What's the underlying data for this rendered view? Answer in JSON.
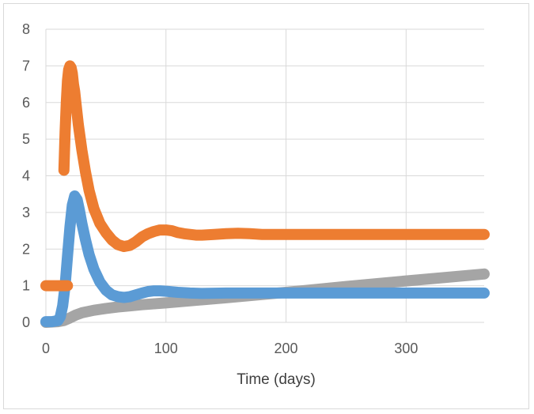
{
  "chart_data": {
    "type": "line",
    "title": "",
    "xlabel": "Time (days)",
    "ylabel": "",
    "xlim": [
      0,
      365
    ],
    "ylim": [
      0,
      8
    ],
    "x_ticks": [
      0,
      100,
      200,
      300
    ],
    "y_ticks": [
      0,
      1,
      2,
      3,
      4,
      5,
      6,
      7,
      8
    ],
    "grid": true,
    "legend": "none",
    "series": [
      {
        "color": "#ed7d31",
        "segments": [
          {
            "x": [
              0,
              18
            ],
            "y": [
              1,
              1
            ]
          },
          {
            "x": [
              15,
              16,
              17,
              18,
              19,
              20,
              21,
              22,
              23,
              24,
              25,
              27,
              30,
              33,
              36,
              40,
              45,
              50,
              55,
              60,
              65,
              70,
              75,
              80,
              85,
              90,
              95,
              100,
              105,
              110,
              115,
              120,
              125,
              130,
              140,
              150,
              160,
              170,
              180,
              200,
              250,
              300,
              365
            ],
            "y": [
              4.15,
              5.2,
              6.0,
              6.6,
              6.9,
              7.0,
              6.95,
              6.8,
              6.5,
              6.3,
              6.0,
              5.4,
              4.7,
              4.1,
              3.6,
              3.1,
              2.7,
              2.45,
              2.25,
              2.12,
              2.07,
              2.1,
              2.2,
              2.33,
              2.42,
              2.48,
              2.52,
              2.52,
              2.5,
              2.45,
              2.42,
              2.4,
              2.38,
              2.38,
              2.4,
              2.42,
              2.43,
              2.42,
              2.4,
              2.4,
              2.4,
              2.4,
              2.4
            ]
          }
        ]
      },
      {
        "color": "#5b9bd5",
        "segments": [
          {
            "x": [
              0,
              5,
              10,
              12,
              14,
              16,
              18,
              20,
              22,
              24,
              26,
              28,
              30,
              33,
              36,
              40,
              45,
              50,
              55,
              60,
              65,
              70,
              75,
              80,
              85,
              90,
              95,
              100,
              110,
              120,
              130,
              150,
              200,
              250,
              300,
              365
            ],
            "y": [
              0.02,
              0.02,
              0.05,
              0.15,
              0.45,
              1.0,
              1.8,
              2.6,
              3.2,
              3.45,
              3.35,
              3.05,
              2.7,
              2.25,
              1.85,
              1.45,
              1.1,
              0.88,
              0.75,
              0.7,
              0.68,
              0.7,
              0.75,
              0.8,
              0.84,
              0.86,
              0.86,
              0.85,
              0.82,
              0.8,
              0.79,
              0.8,
              0.8,
              0.8,
              0.8,
              0.8
            ]
          }
        ]
      },
      {
        "color": "#a5a5a5",
        "segments": [
          {
            "x": [
              0,
              10,
              15,
              20,
              25,
              30,
              40,
              50,
              60,
              70,
              80,
              100,
              150,
              200,
              250,
              300,
              365
            ],
            "y": [
              0.0,
              0.02,
              0.05,
              0.12,
              0.2,
              0.26,
              0.33,
              0.38,
              0.42,
              0.45,
              0.48,
              0.53,
              0.67,
              0.82,
              0.98,
              1.13,
              1.32
            ]
          }
        ]
      }
    ]
  }
}
